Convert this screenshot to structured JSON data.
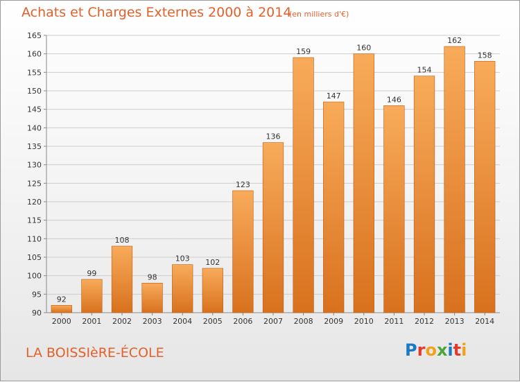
{
  "header": {
    "title": "Achats et Charges Externes 2000 à 2014",
    "subtitle": "(en milliers d'€)"
  },
  "footer": {
    "commune": "LA BOISSIèRE-ÉCOLE",
    "brand": "Proxiti",
    "brand_letter_colors": [
      "#1a79c4",
      "#e23a2c",
      "#f2a21a",
      "#4aa53a",
      "#1a79c4",
      "#e23a2c",
      "#f2a21a"
    ]
  },
  "colors": {
    "accent": "#e4602a",
    "bar_top": "#f8ab5a",
    "bar_bottom": "#d8711e",
    "bar_edge": "#b85c16",
    "grid": "#cccccc"
  },
  "chart_data": {
    "type": "bar",
    "title": "Achats et Charges Externes 2000 à 2014",
    "subtitle": "(en milliers d'€)",
    "categories": [
      "2000",
      "2001",
      "2002",
      "2003",
      "2004",
      "2005",
      "2006",
      "2007",
      "2008",
      "2009",
      "2010",
      "2011",
      "2012",
      "2013",
      "2014"
    ],
    "values": [
      92,
      99,
      108,
      98,
      103,
      102,
      123,
      136,
      159,
      147,
      160,
      146,
      154,
      162,
      158
    ],
    "ylim": [
      90,
      165
    ],
    "yticks": [
      90,
      95,
      100,
      105,
      110,
      115,
      120,
      125,
      130,
      135,
      140,
      145,
      150,
      155,
      160,
      165
    ],
    "grid": true,
    "xlabel": "",
    "ylabel": ""
  }
}
